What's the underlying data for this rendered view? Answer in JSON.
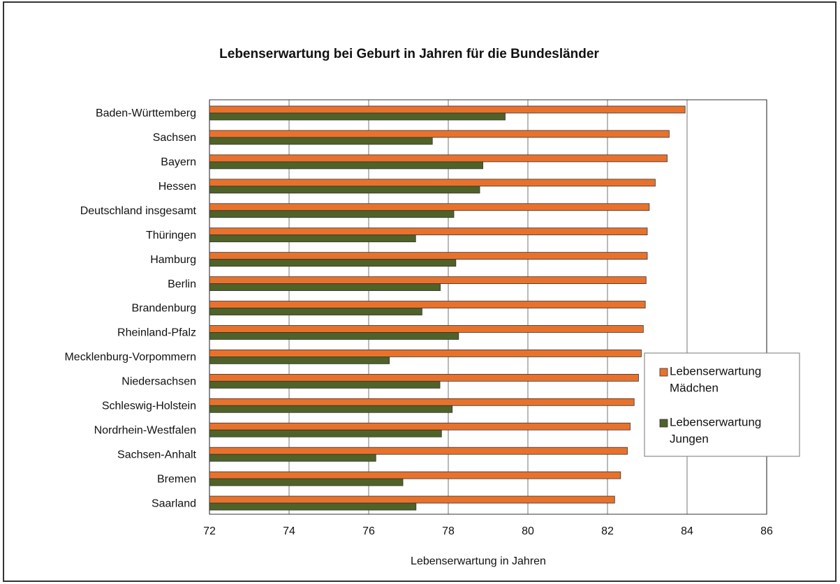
{
  "chart_data": {
    "type": "bar",
    "orientation": "horizontal",
    "title": "Lebenserwartung bei Geburt in Jahren für die Bundesländer",
    "xlabel": "Lebenserwartung in Jahren",
    "ylabel": "",
    "xlim": [
      72,
      86
    ],
    "xticks": [
      "72",
      "74",
      "76",
      "78",
      "80",
      "82",
      "84",
      "86"
    ],
    "grid": "vertical",
    "legend_position": "right",
    "categories": [
      "Baden-Württemberg",
      "Sachsen",
      "Bayern",
      "Hessen",
      "Deutschland insgesamt",
      "Thüringen",
      "Hamburg",
      "Berlin",
      "Brandenburg",
      "Rheinland-Pfalz",
      "Mecklenburg-Vorpommern",
      "Niedersachsen",
      "Schleswig-Holstein",
      "Nordrhein-Westfalen",
      "Sachsen-Anhalt",
      "Bremen",
      "Saarland"
    ],
    "series": [
      {
        "name": "Lebenserwartung Mädchen",
        "legend_lines": [
          "Lebenserwartung",
          "Mädchen"
        ],
        "color": "#E8722C",
        "values": [
          83.95,
          83.55,
          83.5,
          83.2,
          83.05,
          83.0,
          83.0,
          82.97,
          82.95,
          82.9,
          82.85,
          82.78,
          82.67,
          82.57,
          82.5,
          82.33,
          82.18
        ]
      },
      {
        "name": "Lebenserwartung Jungen",
        "legend_lines": [
          "Lebenserwartung",
          "Jungen"
        ],
        "color": "#4F6228",
        "values": [
          79.43,
          77.6,
          78.87,
          78.79,
          78.14,
          77.18,
          78.19,
          77.8,
          77.34,
          78.26,
          76.52,
          77.79,
          78.1,
          77.83,
          76.18,
          76.86,
          77.19
        ]
      }
    ]
  }
}
